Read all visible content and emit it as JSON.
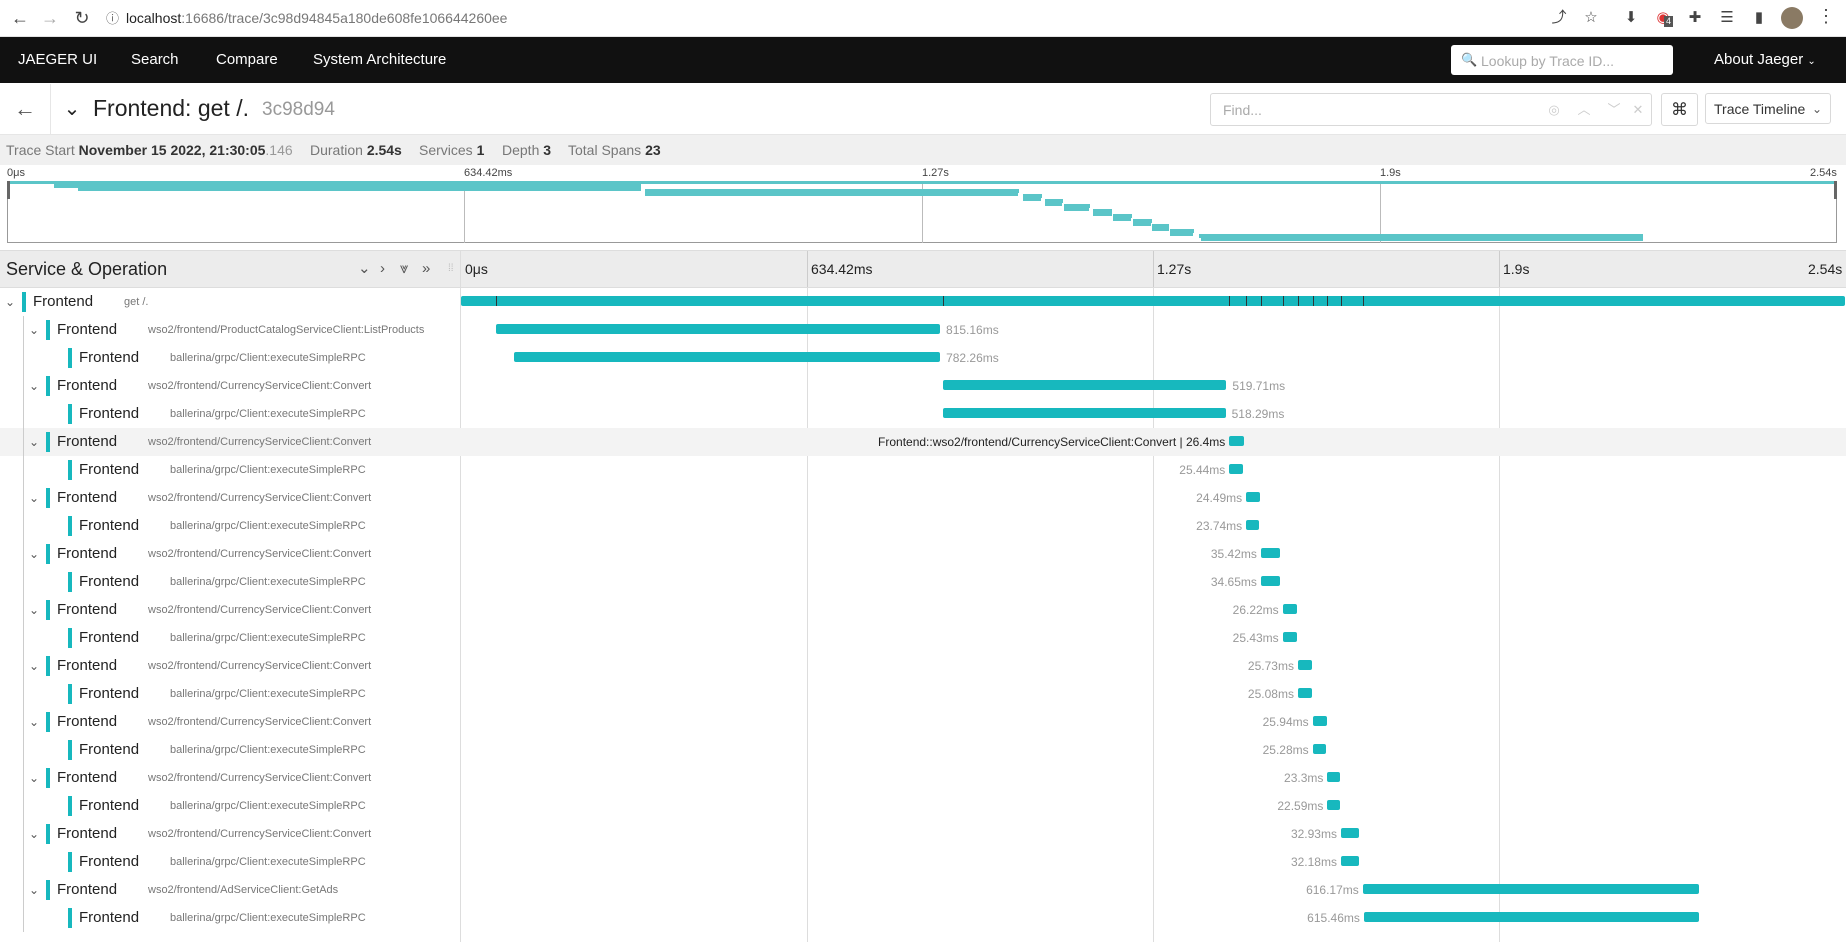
{
  "browser": {
    "url_host": "localhost",
    "url_path": ":16686/trace/3c98d94845a180de608fe106644260ee",
    "ext_badge": "4"
  },
  "nav": {
    "brand": "JAEGER UI",
    "search": "Search",
    "compare": "Compare",
    "system_architecture": "System Architecture",
    "lookup_placeholder": "Lookup by Trace ID...",
    "about": "About Jaeger"
  },
  "trace": {
    "title": "Frontend: get /.",
    "short_id": "3c98d94",
    "find_placeholder": "Find...",
    "view_mode": "Trace Timeline"
  },
  "summary": {
    "trace_start_label": "Trace Start",
    "trace_start_value": "November 15 2022, 21:30:05",
    "trace_start_ms": ".146",
    "duration_label": "Duration",
    "duration_value": "2.54s",
    "services_label": "Services",
    "services_value": "1",
    "depth_label": "Depth",
    "depth_value": "3",
    "total_spans_label": "Total Spans",
    "total_spans_value": "23"
  },
  "timeline": {
    "ticks": [
      "0μs",
      "634.42ms",
      "1.27s",
      "1.9s",
      "2.54s"
    ],
    "column_title": "Service & Operation",
    "total_ms": 2540,
    "accent": "#17b8be"
  },
  "spans": [
    {
      "service": "Frontend",
      "operation": "get /.",
      "depth": 0,
      "start": 0,
      "duration": 2540,
      "label": ""
    },
    {
      "service": "Frontend",
      "operation": "wso2/frontend/ProductCatalogServiceClient:ListProducts",
      "depth": 1,
      "start": 64,
      "duration": 815.16,
      "label": "815.16ms"
    },
    {
      "service": "Frontend",
      "operation": "ballerina/grpc/Client:executeSimpleRPC",
      "depth": 2,
      "start": 97,
      "duration": 782.26,
      "label": "782.26ms"
    },
    {
      "service": "Frontend",
      "operation": "wso2/frontend/CurrencyServiceClient:Convert",
      "depth": 1,
      "start": 885,
      "duration": 519.71,
      "label": "519.71ms"
    },
    {
      "service": "Frontend",
      "operation": "ballerina/grpc/Client:executeSimpleRPC",
      "depth": 2,
      "start": 885,
      "duration": 518.29,
      "label": "518.29ms"
    },
    {
      "service": "Frontend",
      "operation": "wso2/frontend/CurrencyServiceClient:Convert",
      "depth": 1,
      "start": 1410,
      "duration": 26.4,
      "label": "Frontend::wso2/frontend/CurrencyServiceClient:Convert | 26.4ms",
      "highlight": true
    },
    {
      "service": "Frontend",
      "operation": "ballerina/grpc/Client:executeSimpleRPC",
      "depth": 2,
      "start": 1410,
      "duration": 25.44,
      "label": "25.44ms"
    },
    {
      "service": "Frontend",
      "operation": "wso2/frontend/CurrencyServiceClient:Convert",
      "depth": 1,
      "start": 1441,
      "duration": 24.49,
      "label": "24.49ms"
    },
    {
      "service": "Frontend",
      "operation": "ballerina/grpc/Client:executeSimpleRPC",
      "depth": 2,
      "start": 1441,
      "duration": 23.74,
      "label": "23.74ms"
    },
    {
      "service": "Frontend",
      "operation": "wso2/frontend/CurrencyServiceClient:Convert",
      "depth": 1,
      "start": 1468,
      "duration": 35.42,
      "label": "35.42ms"
    },
    {
      "service": "Frontend",
      "operation": "ballerina/grpc/Client:executeSimpleRPC",
      "depth": 2,
      "start": 1468,
      "duration": 34.65,
      "label": "34.65ms"
    },
    {
      "service": "Frontend",
      "operation": "wso2/frontend/CurrencyServiceClient:Convert",
      "depth": 1,
      "start": 1508,
      "duration": 26.22,
      "label": "26.22ms"
    },
    {
      "service": "Frontend",
      "operation": "ballerina/grpc/Client:executeSimpleRPC",
      "depth": 2,
      "start": 1508,
      "duration": 25.43,
      "label": "25.43ms"
    },
    {
      "service": "Frontend",
      "operation": "wso2/frontend/CurrencyServiceClient:Convert",
      "depth": 1,
      "start": 1536,
      "duration": 25.73,
      "label": "25.73ms"
    },
    {
      "service": "Frontend",
      "operation": "ballerina/grpc/Client:executeSimpleRPC",
      "depth": 2,
      "start": 1536,
      "duration": 25.08,
      "label": "25.08ms"
    },
    {
      "service": "Frontend",
      "operation": "wso2/frontend/CurrencyServiceClient:Convert",
      "depth": 1,
      "start": 1563,
      "duration": 25.94,
      "label": "25.94ms"
    },
    {
      "service": "Frontend",
      "operation": "ballerina/grpc/Client:executeSimpleRPC",
      "depth": 2,
      "start": 1563,
      "duration": 25.28,
      "label": "25.28ms"
    },
    {
      "service": "Frontend",
      "operation": "wso2/frontend/CurrencyServiceClient:Convert",
      "depth": 1,
      "start": 1590,
      "duration": 23.3,
      "label": "23.3ms"
    },
    {
      "service": "Frontend",
      "operation": "ballerina/grpc/Client:executeSimpleRPC",
      "depth": 2,
      "start": 1590,
      "duration": 22.59,
      "label": "22.59ms"
    },
    {
      "service": "Frontend",
      "operation": "wso2/frontend/CurrencyServiceClient:Convert",
      "depth": 1,
      "start": 1615,
      "duration": 32.93,
      "label": "32.93ms"
    },
    {
      "service": "Frontend",
      "operation": "ballerina/grpc/Client:executeSimpleRPC",
      "depth": 2,
      "start": 1615,
      "duration": 32.18,
      "label": "32.18ms"
    },
    {
      "service": "Frontend",
      "operation": "wso2/frontend/AdServiceClient:GetAds",
      "depth": 1,
      "start": 1655,
      "duration": 616.17,
      "label": "616.17ms"
    },
    {
      "service": "Frontend",
      "operation": "ballerina/grpc/Client:executeSimpleRPC",
      "depth": 2,
      "start": 1657,
      "duration": 615.46,
      "label": "615.46ms"
    }
  ]
}
